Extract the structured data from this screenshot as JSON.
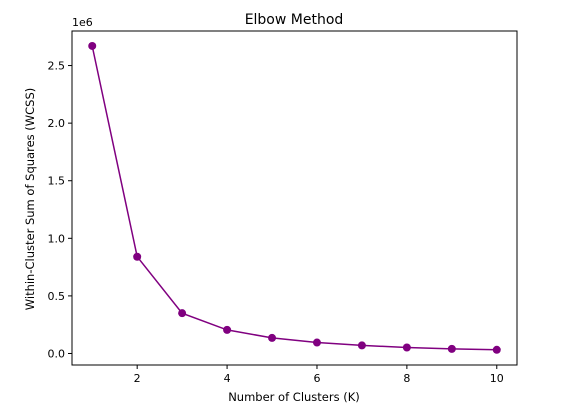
{
  "chart_data": {
    "type": "line",
    "title": "Elbow Method",
    "xlabel": "Number of Clusters (K)",
    "ylabel": "Within-Cluster Sum of Squares (WCSS)",
    "y_offset_label": "1e6",
    "x": [
      1,
      2,
      3,
      4,
      5,
      6,
      7,
      8,
      9,
      10
    ],
    "y": [
      2670000,
      840000,
      350000,
      205000,
      135000,
      95000,
      70000,
      52000,
      40000,
      32000
    ],
    "xlim": [
      0.55,
      10.45
    ],
    "ylim": [
      -100000,
      2800000
    ],
    "xticks": [
      2,
      4,
      6,
      8,
      10
    ],
    "xtick_labels": [
      "2",
      "4",
      "6",
      "8",
      "10"
    ],
    "yticks": [
      0,
      500000,
      1000000,
      1500000,
      2000000,
      2500000
    ],
    "ytick_labels": [
      "0.0",
      "0.5",
      "1.0",
      "1.5",
      "2.0",
      "2.5"
    ],
    "color": "#800080",
    "marker": "circle",
    "grid": false,
    "legend": false
  }
}
